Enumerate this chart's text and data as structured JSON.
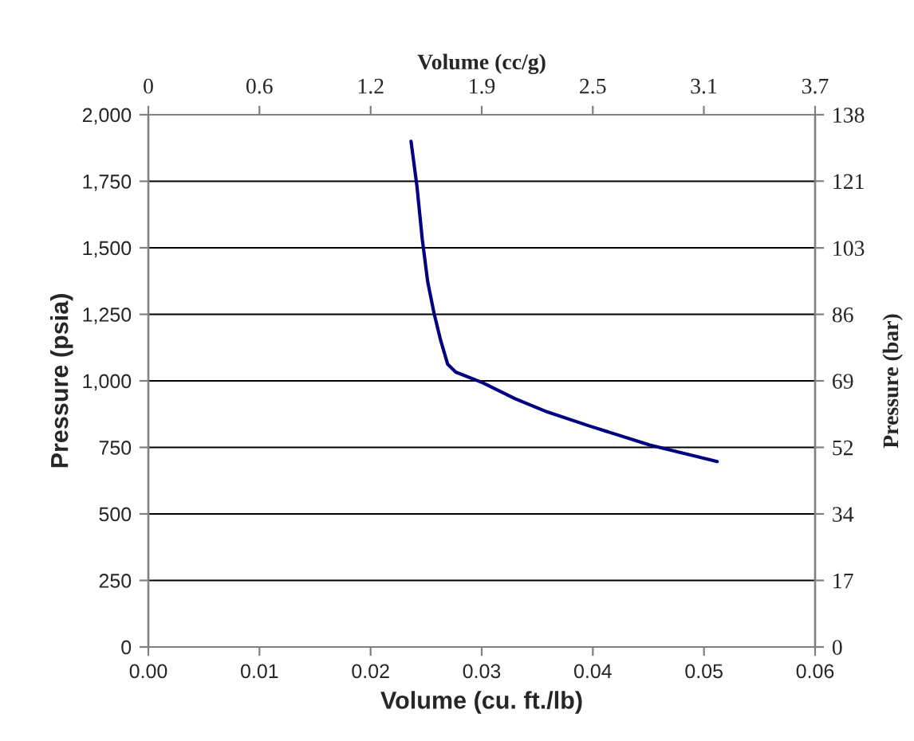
{
  "chart_data": {
    "type": "line",
    "xlabel": "Volume (cu. ft./lb)",
    "ylabel": "Pressure (psia)",
    "x2label": "Volume (cc/g)",
    "y2label": "Pressure (bar)",
    "series": [
      {
        "color": "#000080",
        "x": [
          0.02364,
          0.02417,
          0.02465,
          0.02514,
          0.02572,
          0.0263,
          0.02693,
          0.02766,
          0.03009,
          0.033,
          0.03591,
          0.0398,
          0.04512,
          0.05119
        ],
        "values": [
          1900,
          1732,
          1532,
          1372,
          1252,
          1153,
          1063,
          1033,
          993,
          933,
          883,
          829,
          759,
          697
        ]
      }
    ],
    "xlim": [
      0,
      0.06
    ],
    "xticks": [
      {
        "value": 0,
        "label": "0.00"
      },
      {
        "value": 0.01,
        "label": "0.01"
      },
      {
        "value": 0.02,
        "label": "0.02"
      },
      {
        "value": 0.03,
        "label": "0.03"
      },
      {
        "value": 0.04,
        "label": "0.04"
      },
      {
        "value": 0.05,
        "label": "0.05"
      },
      {
        "value": 0.06,
        "label": "0.06"
      }
    ],
    "ylim": [
      0,
      2000
    ],
    "yticks": [
      0,
      250,
      500,
      750,
      {
        "value": 1000,
        "label": "1,000"
      },
      {
        "value": 1250,
        "label": "1,250"
      },
      {
        "value": 1500,
        "label": "1,500"
      },
      {
        "value": 1750,
        "label": "1,750"
      },
      {
        "value": 2000,
        "label": "2,000"
      }
    ],
    "x2lim": [
      0,
      3.746
    ],
    "x2ticks": [
      0,
      {
        "value": 0.624,
        "label": "0.6"
      },
      {
        "value": 1.249,
        "label": "1.2"
      },
      {
        "value": 1.873,
        "label": "1.9"
      },
      {
        "value": 2.497,
        "label": "2.5"
      },
      {
        "value": 3.121,
        "label": "3.1"
      },
      {
        "value": 3.746,
        "label": "3.7"
      }
    ],
    "y2lim": [
      0,
      137.9
    ],
    "y2ticks": [
      0,
      {
        "value": 17.24,
        "label": "17"
      },
      {
        "value": 34.47,
        "label": "34"
      },
      {
        "value": 51.71,
        "label": "52"
      },
      {
        "value": 68.95,
        "label": "69"
      },
      {
        "value": 86.18,
        "label": "86"
      },
      {
        "value": 103.4,
        "label": "103"
      },
      {
        "value": 120.7,
        "label": "121"
      },
      {
        "value": 137.9,
        "label": "138"
      }
    ],
    "grid": "y",
    "marker": "none",
    "line_style": "solid",
    "legend": false
  }
}
